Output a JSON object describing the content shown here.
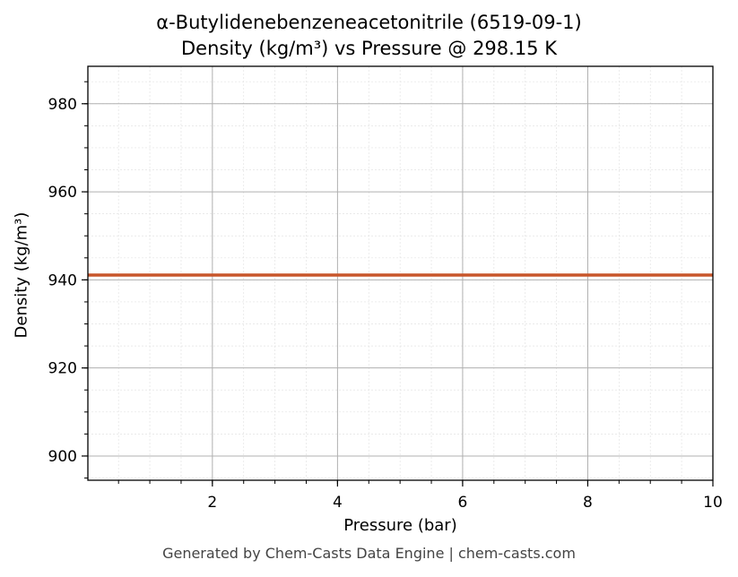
{
  "chart_data": {
    "type": "line",
    "title": "α-Butylidenebenzeneacetonitrile (6519-09-1)",
    "subtitle": "Density (kg/m³) vs Pressure @ 298.15 K",
    "xlabel": "Pressure (bar)",
    "ylabel": "Density (kg/m³)",
    "xlim": [
      0.01,
      10
    ],
    "ylim": [
      894.5,
      988.5
    ],
    "x_ticks": [
      2,
      4,
      6,
      8,
      10
    ],
    "y_ticks": [
      900,
      920,
      940,
      960,
      980
    ],
    "x_minor_step": 0.5,
    "y_minor_step": 5,
    "grid": true,
    "series": [
      {
        "x": [
          0.01,
          1,
          2,
          3,
          4,
          5,
          6,
          7,
          8,
          9,
          10
        ],
        "y": [
          941.1,
          941.1,
          941.1,
          941.1,
          941.1,
          941.1,
          941.1,
          941.1,
          941.1,
          941.1,
          941.1
        ],
        "color": "#c8562b"
      }
    ]
  },
  "footer": "Generated by Chem-Casts Data Engine | chem-casts.com"
}
